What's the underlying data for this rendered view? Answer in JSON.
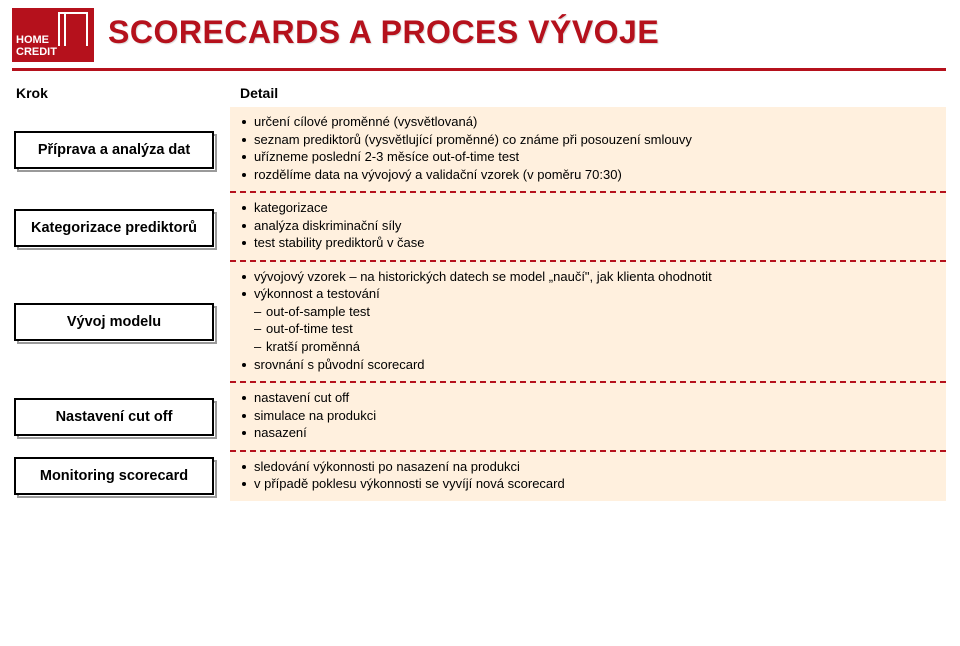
{
  "logo": {
    "line1": "HOME",
    "line2": "CREDIT"
  },
  "title": "SCORECARDS A PROCES VÝVOJE",
  "columns": {
    "left": "Krok",
    "right": "Detail"
  },
  "colors": {
    "brand": "#b5111c",
    "detail_bg": "#fff0de",
    "shadow_border": "#9a9a9a"
  },
  "steps": [
    {
      "label": "Příprava a analýza dat",
      "details": [
        {
          "type": "bullet",
          "text": "určení cílové proměnné (vysvětlovaná)"
        },
        {
          "type": "bullet",
          "text": "seznam prediktorů (vysvětlující proměnné) co známe při posouzení smlouvy"
        },
        {
          "type": "bullet",
          "text": "uřízneme poslední 2-3 měsíce out-of-time test"
        },
        {
          "type": "bullet",
          "text": "rozdělíme data na vývojový a validační vzorek (v poměru 70:30)"
        }
      ]
    },
    {
      "label": "Kategorizace prediktorů",
      "details": [
        {
          "type": "bullet",
          "text": "kategorizace"
        },
        {
          "type": "bullet",
          "text": "analýza diskriminační síly"
        },
        {
          "type": "bullet",
          "text": "test stability prediktorů v čase"
        }
      ]
    },
    {
      "label": "Vývoj modelu",
      "details": [
        {
          "type": "bullet",
          "text": "vývojový vzorek – na historických datech se model „naučí\", jak klienta ohodnotit"
        },
        {
          "type": "bullet",
          "text": "výkonnost a testování"
        },
        {
          "type": "sub",
          "text": "out-of-sample test"
        },
        {
          "type": "sub",
          "text": "out-of-time test"
        },
        {
          "type": "sub",
          "text": "kratší proměnná"
        },
        {
          "type": "bullet",
          "text": "srovnání s původní scorecard"
        }
      ]
    },
    {
      "label": "Nastavení cut off",
      "details": [
        {
          "type": "bullet",
          "text": "nastavení cut off"
        },
        {
          "type": "bullet",
          "text": "simulace na produkci"
        },
        {
          "type": "bullet",
          "text": "nasazení"
        }
      ]
    },
    {
      "label": "Monitoring scorecard",
      "details": [
        {
          "type": "bullet",
          "text": "sledování výkonnosti po nasazení na produkci"
        },
        {
          "type": "bullet",
          "text": "v případě poklesu výkonnosti se vyvíjí nová scorecard"
        }
      ]
    }
  ]
}
